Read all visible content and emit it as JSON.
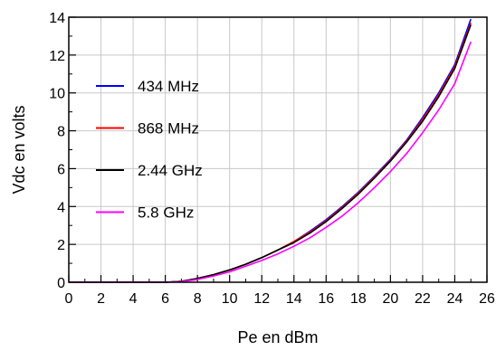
{
  "chart_data": {
    "type": "line",
    "title": "",
    "xlabel": "Pe en dBm",
    "ylabel": "Vdc en volts",
    "xlim": [
      0,
      26
    ],
    "ylim": [
      0,
      14
    ],
    "xticks": [
      0,
      2,
      4,
      6,
      8,
      10,
      12,
      14,
      16,
      18,
      20,
      22,
      24,
      26
    ],
    "yticks": [
      0,
      2,
      4,
      6,
      8,
      10,
      12,
      14
    ],
    "grid": true,
    "legend_position": "left",
    "series": [
      {
        "name": "434 MHz",
        "color": "#0000ff",
        "x": [
          0,
          6,
          7,
          8,
          9,
          10,
          11,
          12,
          13,
          14,
          15,
          16,
          17,
          18,
          19,
          20,
          21,
          22,
          23,
          24,
          25
        ],
        "y": [
          0,
          0,
          0.05,
          0.2,
          0.4,
          0.65,
          0.95,
          1.3,
          1.7,
          2.15,
          2.7,
          3.3,
          4.0,
          4.75,
          5.6,
          6.5,
          7.5,
          8.7,
          10.0,
          11.5,
          13.9
        ]
      },
      {
        "name": "868 MHz",
        "color": "#ff0000",
        "x": [
          0,
          6,
          7,
          8,
          9,
          10,
          11,
          12,
          13,
          14,
          15,
          16,
          17,
          18,
          19,
          20,
          21,
          22,
          23,
          24,
          25
        ],
        "y": [
          0,
          0,
          0.05,
          0.2,
          0.4,
          0.65,
          0.95,
          1.3,
          1.7,
          2.15,
          2.65,
          3.25,
          3.95,
          4.7,
          5.55,
          6.45,
          7.45,
          8.6,
          9.9,
          11.4,
          13.7
        ]
      },
      {
        "name": "2.44 GHz",
        "color": "#000000",
        "x": [
          0,
          6,
          7,
          8,
          9,
          10,
          11,
          12,
          13,
          14,
          15,
          16,
          17,
          18,
          19,
          20,
          21,
          22,
          23,
          24,
          25
        ],
        "y": [
          0,
          0,
          0.05,
          0.2,
          0.4,
          0.65,
          0.95,
          1.3,
          1.7,
          2.1,
          2.6,
          3.2,
          3.9,
          4.65,
          5.5,
          6.4,
          7.4,
          8.5,
          9.8,
          11.3,
          13.6
        ]
      },
      {
        "name": "5.8 GHz",
        "color": "#ff00ff",
        "x": [
          0,
          6,
          7,
          8,
          9,
          10,
          11,
          12,
          13,
          14,
          15,
          16,
          17,
          18,
          19,
          20,
          21,
          22,
          23,
          24,
          25
        ],
        "y": [
          0,
          0,
          0.03,
          0.15,
          0.33,
          0.55,
          0.85,
          1.15,
          1.5,
          1.9,
          2.35,
          2.9,
          3.5,
          4.2,
          5.0,
          5.85,
          6.8,
          7.9,
          9.1,
          10.5,
          12.7
        ]
      }
    ]
  }
}
